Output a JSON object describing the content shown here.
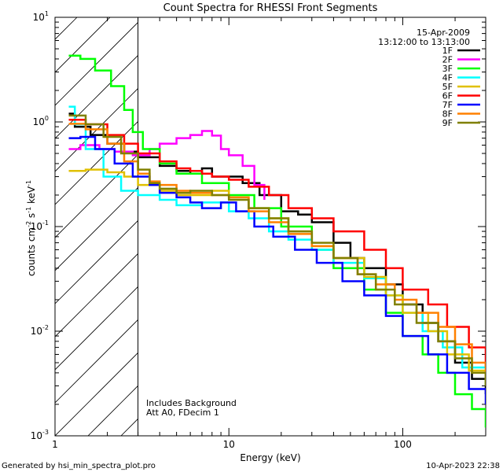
{
  "chart_data": {
    "type": "line",
    "title": "Count Spectra for RHESSI Front Segments",
    "xlabel": "Energy (keV)",
    "ylabel_parts": {
      "counts": "counts cm",
      "exp1": "-2",
      "s": " s",
      "exp2": "-1",
      "kev": " keV",
      "exp3": "-1"
    },
    "x_scale": "log",
    "y_scale": "log",
    "xlim": [
      1,
      300
    ],
    "ylim": [
      0.001,
      10
    ],
    "x_ticks": [
      {
        "value": 1,
        "label": "1"
      },
      {
        "value": 10,
        "label": "10"
      },
      {
        "value": 100,
        "label": "100"
      }
    ],
    "y_ticks": [
      {
        "value": 10,
        "mant": "10",
        "exp": "1"
      },
      {
        "value": 1,
        "mant": "10",
        "exp": "0"
      },
      {
        "value": 0.1,
        "mant": "10",
        "exp": "-1"
      },
      {
        "value": 0.01,
        "mant": "10",
        "exp": "-2"
      },
      {
        "value": 0.001,
        "mant": "10",
        "exp": "-3"
      }
    ],
    "hatched_region": {
      "x_from": 1,
      "x_to": 3
    },
    "date": "15-Apr-2009",
    "time_range": "13:12:00 to 13:13:00",
    "annotations": [
      "Includes Background",
      "Att A0, FDecim 1"
    ],
    "series": [
      {
        "name": "1F",
        "color": "#000000",
        "points": [
          [
            1.2,
            1.2
          ],
          [
            1.3,
            0.9
          ],
          [
            1.6,
            0.75
          ],
          [
            2,
            0.62
          ],
          [
            2.5,
            0.52
          ],
          [
            3,
            0.46
          ],
          [
            4,
            0.38
          ],
          [
            5,
            0.34
          ],
          [
            6,
            0.32
          ],
          [
            7,
            0.36
          ],
          [
            8,
            0.3
          ],
          [
            10,
            0.3
          ],
          [
            12,
            0.26
          ],
          [
            15,
            0.2
          ],
          [
            20,
            0.14
          ],
          [
            25,
            0.13
          ],
          [
            30,
            0.11
          ],
          [
            40,
            0.07
          ],
          [
            50,
            0.05
          ],
          [
            60,
            0.04
          ],
          [
            80,
            0.028
          ],
          [
            100,
            0.018
          ],
          [
            130,
            0.012
          ],
          [
            160,
            0.008
          ],
          [
            200,
            0.005
          ],
          [
            250,
            0.0035
          ],
          [
            300,
            0.0025
          ]
        ]
      },
      {
        "name": "2F",
        "color": "#ff00ff",
        "points": [
          [
            1.2,
            0.55
          ],
          [
            1.4,
            0.6
          ],
          [
            1.8,
            0.55
          ],
          [
            2.2,
            0.52
          ],
          [
            2.8,
            0.48
          ],
          [
            3.5,
            0.55
          ],
          [
            4,
            0.62
          ],
          [
            5,
            0.7
          ],
          [
            6,
            0.75
          ],
          [
            7,
            0.82
          ],
          [
            8,
            0.74
          ],
          [
            9,
            0.55
          ],
          [
            10,
            0.48
          ],
          [
            12,
            0.38
          ],
          [
            14,
            0.25
          ],
          [
            16,
            0.18
          ]
        ]
      },
      {
        "name": "3F",
        "color": "#00ff00",
        "points": [
          [
            1.2,
            4.3
          ],
          [
            1.4,
            4.0
          ],
          [
            1.7,
            3.1
          ],
          [
            2.1,
            2.2
          ],
          [
            2.5,
            1.3
          ],
          [
            2.8,
            0.8
          ],
          [
            3.2,
            0.55
          ],
          [
            4,
            0.4
          ],
          [
            5,
            0.32
          ],
          [
            7,
            0.26
          ],
          [
            10,
            0.2
          ],
          [
            14,
            0.15
          ],
          [
            20,
            0.1
          ],
          [
            30,
            0.06
          ],
          [
            40,
            0.04
          ],
          [
            60,
            0.025
          ],
          [
            80,
            0.015
          ],
          [
            100,
            0.009
          ],
          [
            130,
            0.006
          ],
          [
            160,
            0.004
          ],
          [
            200,
            0.0025
          ],
          [
            250,
            0.0018
          ],
          [
            300,
            0.0012
          ]
        ]
      },
      {
        "name": "4F",
        "color": "#00ffff",
        "points": [
          [
            1.2,
            1.4
          ],
          [
            1.3,
            0.95
          ],
          [
            1.5,
            0.55
          ],
          [
            1.9,
            0.3
          ],
          [
            2.4,
            0.22
          ],
          [
            3,
            0.2
          ],
          [
            4,
            0.18
          ],
          [
            5,
            0.16
          ],
          [
            7,
            0.17
          ],
          [
            10,
            0.14
          ],
          [
            13,
            0.12
          ],
          [
            17,
            0.09
          ],
          [
            22,
            0.075
          ],
          [
            30,
            0.06
          ],
          [
            40,
            0.045
          ],
          [
            60,
            0.032
          ],
          [
            80,
            0.022
          ],
          [
            100,
            0.015
          ],
          [
            130,
            0.01
          ],
          [
            170,
            0.007
          ],
          [
            220,
            0.0045
          ],
          [
            300,
            0.003
          ]
        ]
      },
      {
        "name": "5F",
        "color": "#e0c000",
        "points": [
          [
            1.2,
            0.34
          ],
          [
            1.5,
            0.35
          ],
          [
            2,
            0.33
          ],
          [
            2.5,
            0.3
          ],
          [
            3,
            0.25
          ],
          [
            4,
            0.22
          ],
          [
            5,
            0.2
          ],
          [
            6,
            0.2
          ],
          [
            8,
            0.22
          ],
          [
            10,
            0.19
          ],
          [
            13,
            0.15
          ],
          [
            17,
            0.12
          ],
          [
            22,
            0.09
          ],
          [
            30,
            0.065
          ],
          [
            40,
            0.05
          ],
          [
            60,
            0.033
          ],
          [
            80,
            0.022
          ],
          [
            100,
            0.015
          ],
          [
            140,
            0.01
          ],
          [
            180,
            0.006
          ],
          [
            240,
            0.0042
          ],
          [
            300,
            0.003
          ]
        ]
      },
      {
        "name": "6F",
        "color": "#ff0000",
        "points": [
          [
            1.2,
            1.05
          ],
          [
            1.5,
            0.95
          ],
          [
            2,
            0.75
          ],
          [
            2.5,
            0.62
          ],
          [
            3,
            0.5
          ],
          [
            4,
            0.42
          ],
          [
            5,
            0.36
          ],
          [
            6,
            0.34
          ],
          [
            7,
            0.32
          ],
          [
            8,
            0.3
          ],
          [
            10,
            0.28
          ],
          [
            13,
            0.24
          ],
          [
            17,
            0.2
          ],
          [
            22,
            0.15
          ],
          [
            30,
            0.12
          ],
          [
            40,
            0.09
          ],
          [
            60,
            0.06
          ],
          [
            80,
            0.04
          ],
          [
            100,
            0.025
          ],
          [
            140,
            0.018
          ],
          [
            180,
            0.011
          ],
          [
            240,
            0.007
          ],
          [
            300,
            0.0045
          ]
        ]
      },
      {
        "name": "7F",
        "color": "#0000ff",
        "points": [
          [
            1.2,
            0.7
          ],
          [
            1.4,
            0.72
          ],
          [
            1.7,
            0.55
          ],
          [
            2.2,
            0.4
          ],
          [
            2.8,
            0.3
          ],
          [
            3.5,
            0.25
          ],
          [
            4,
            0.21
          ],
          [
            5,
            0.19
          ],
          [
            6,
            0.17
          ],
          [
            7,
            0.15
          ],
          [
            9,
            0.17
          ],
          [
            11,
            0.14
          ],
          [
            14,
            0.1
          ],
          [
            18,
            0.08
          ],
          [
            24,
            0.06
          ],
          [
            32,
            0.045
          ],
          [
            45,
            0.03
          ],
          [
            60,
            0.022
          ],
          [
            80,
            0.014
          ],
          [
            100,
            0.009
          ],
          [
            140,
            0.006
          ],
          [
            180,
            0.004
          ],
          [
            240,
            0.0028
          ],
          [
            300,
            0.002
          ]
        ]
      },
      {
        "name": "8F",
        "color": "#ff8000",
        "points": [
          [
            1.2,
            0.96
          ],
          [
            1.5,
            0.85
          ],
          [
            2,
            0.62
          ],
          [
            2.5,
            0.42
          ],
          [
            3,
            0.32
          ],
          [
            3.5,
            0.27
          ],
          [
            4,
            0.25
          ],
          [
            5,
            0.22
          ],
          [
            6,
            0.21
          ],
          [
            8,
            0.2
          ],
          [
            10,
            0.19
          ],
          [
            13,
            0.14
          ],
          [
            17,
            0.11
          ],
          [
            22,
            0.085
          ],
          [
            30,
            0.065
          ],
          [
            40,
            0.05
          ],
          [
            55,
            0.035
          ],
          [
            70,
            0.028
          ],
          [
            90,
            0.02
          ],
          [
            120,
            0.015
          ],
          [
            160,
            0.011
          ],
          [
            200,
            0.0075
          ],
          [
            250,
            0.005
          ],
          [
            300,
            0.0035
          ]
        ]
      },
      {
        "name": "9F",
        "color": "#808000",
        "points": [
          [
            1.2,
            1.15
          ],
          [
            1.5,
            0.95
          ],
          [
            1.9,
            0.72
          ],
          [
            2.4,
            0.5
          ],
          [
            3,
            0.35
          ],
          [
            3.5,
            0.26
          ],
          [
            4,
            0.23
          ],
          [
            5,
            0.21
          ],
          [
            6,
            0.22
          ],
          [
            8,
            0.2
          ],
          [
            10,
            0.18
          ],
          [
            13,
            0.15
          ],
          [
            17,
            0.12
          ],
          [
            22,
            0.09
          ],
          [
            30,
            0.07
          ],
          [
            40,
            0.05
          ],
          [
            55,
            0.035
          ],
          [
            70,
            0.025
          ],
          [
            90,
            0.018
          ],
          [
            120,
            0.012
          ],
          [
            160,
            0.008
          ],
          [
            200,
            0.0055
          ],
          [
            250,
            0.004
          ],
          [
            300,
            0.003
          ]
        ]
      }
    ]
  },
  "footer": {
    "generated_by": "Generated by hsi_min_spectra_plot.pro",
    "timestamp": "10-Apr-2023 22:38"
  }
}
